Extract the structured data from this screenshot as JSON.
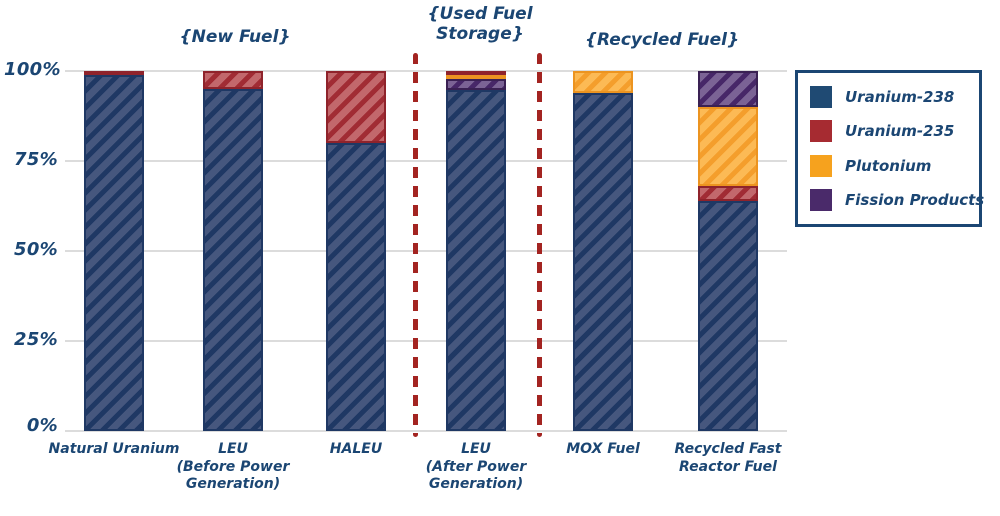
{
  "chart_data": {
    "type": "bar",
    "stacked": true,
    "title": "",
    "xlabel": "",
    "ylabel": "",
    "ylim": [
      0,
      100
    ],
    "grid": true,
    "legend_position": "right",
    "y_ticks": [
      "100%",
      "75%",
      "50%",
      "25%",
      "0%"
    ],
    "categories": [
      "Natural Uranium",
      "LEU (Before Power Generation)",
      "HALEU",
      "LEU (After Power Generation)",
      "MOX Fuel",
      "Recycled Fast Reactor Fuel"
    ],
    "x_tick_labels": [
      "Natural Uranium",
      "LEU\n(Before Power\nGeneration)",
      "HALEU",
      "LEU\n(After Power\nGeneration)",
      "MOX Fuel",
      "Recycled Fast\nReactor Fuel"
    ],
    "group_annotations": [
      {
        "label": "{New Fuel}",
        "bars": [
          0,
          1,
          2
        ]
      },
      {
        "label": "{Used Fuel\nStorage}",
        "bars": [
          3
        ]
      },
      {
        "label": "{Recycled Fuel}",
        "bars": [
          4,
          5
        ]
      }
    ],
    "separator_color": "#a32421",
    "series": [
      {
        "name": "Uranium-238",
        "color": "#1f4a73",
        "values": [
          99.3,
          95,
          80,
          95,
          94,
          64
        ]
      },
      {
        "name": "Uranium-235",
        "color": "#a62b31",
        "values": [
          0.7,
          5,
          20,
          1,
          0,
          4
        ]
      },
      {
        "name": "Plutonium",
        "color": "#f6a21e",
        "values": [
          0,
          0,
          0,
          1,
          6,
          22
        ]
      },
      {
        "name": "Fission Products",
        "color": "#4a2a6a",
        "values": [
          0,
          0,
          0,
          3,
          0,
          10
        ]
      }
    ],
    "stack_order_top_down": [
      [
        "Uranium-235",
        "Uranium-238"
      ],
      [
        "Uranium-235",
        "Uranium-238"
      ],
      [
        "Uranium-235",
        "Uranium-238"
      ],
      [
        "Uranium-235",
        "Plutonium",
        "Fission Products",
        "Uranium-238"
      ],
      [
        "Plutonium",
        "Uranium-238"
      ],
      [
        "Fission Products",
        "Plutonium",
        "Uranium-235",
        "Uranium-238"
      ]
    ]
  }
}
